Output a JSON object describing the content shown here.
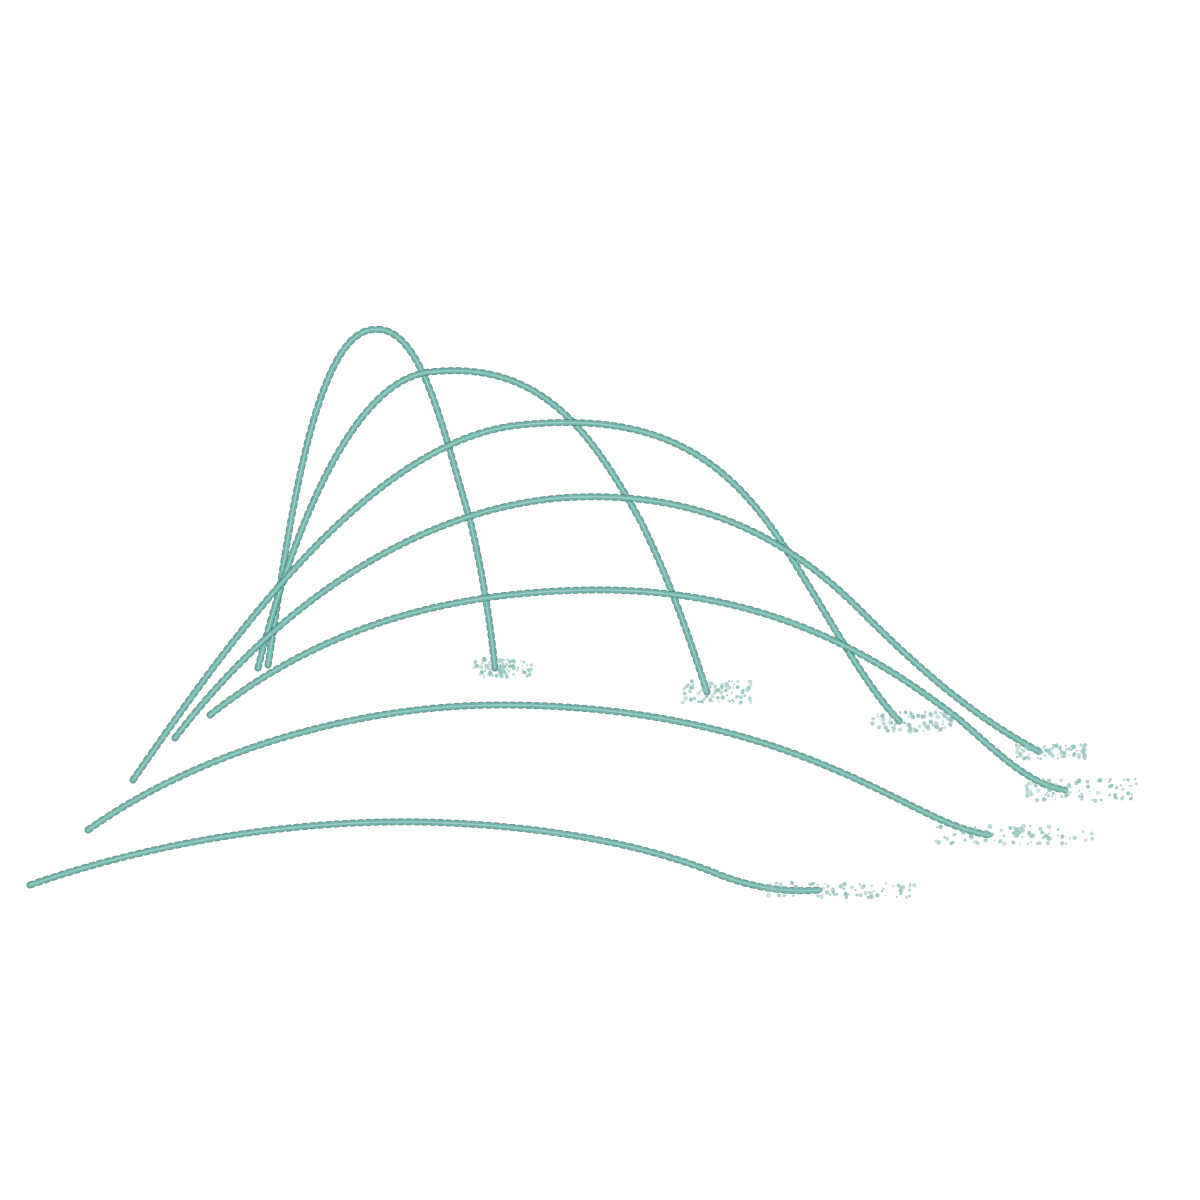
{
  "scene": {
    "subject": "water-jet-arcs",
    "jet_count": 7,
    "colors": {
      "water": "#6fb3aa",
      "water_shadow": "#3d6f6a",
      "water_highlight": "#a9d8d1",
      "spray": "#8fbfb9",
      "background": "#ffffff"
    }
  }
}
